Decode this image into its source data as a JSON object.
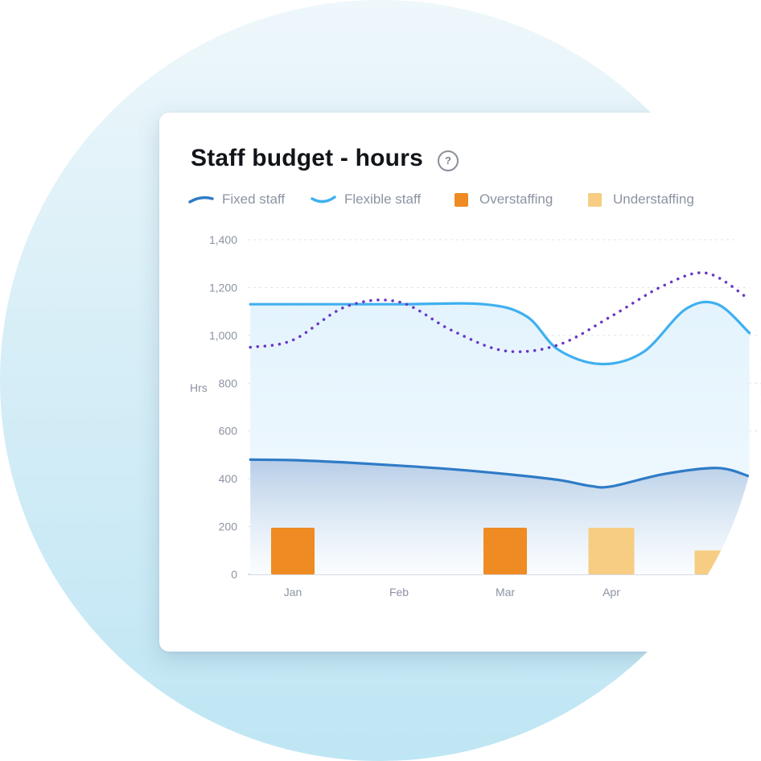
{
  "chart_data": {
    "type": "line",
    "title": "Staff budget - hours",
    "ylabel": "Hrs",
    "xlabel": "",
    "ylim": [
      0,
      1400
    ],
    "yticks": [
      0,
      200,
      400,
      600,
      800,
      1000,
      1200,
      1400
    ],
    "y_tick_labels": [
      "0",
      "200",
      "400",
      "600",
      "800",
      "1,000",
      "1,200",
      "1,400"
    ],
    "categories": [
      "Jan",
      "Feb",
      "Mar",
      "Apr"
    ],
    "grid": true,
    "legend_position": "top",
    "series": [
      {
        "name": "Fixed staff",
        "kind": "area-line",
        "color": "#2f7bc6",
        "x": [
          -0.4,
          0,
          0.5,
          1,
          1.5,
          2,
          2.5,
          2.8,
          3,
          3.5,
          4,
          4.3
        ],
        "y": [
          480,
          478,
          468,
          455,
          440,
          420,
          395,
          370,
          368,
          420,
          445,
          410
        ]
      },
      {
        "name": "Flexible staff",
        "kind": "area-line",
        "color": "#3fb0ef",
        "x": [
          -0.4,
          0,
          1,
          1.8,
          2.2,
          2.5,
          2.9,
          3.3,
          3.7,
          4,
          4.3
        ],
        "y": [
          1130,
          1130,
          1130,
          1130,
          1080,
          940,
          880,
          930,
          1110,
          1130,
          1010
        ]
      },
      {
        "name": "",
        "kind": "dotted-line",
        "color": "#6b35c4",
        "x": [
          -0.4,
          0,
          0.5,
          1,
          1.5,
          2,
          2.5,
          3,
          3.5,
          3.9,
          4.3
        ],
        "y": [
          950,
          980,
          1120,
          1140,
          1020,
          935,
          960,
          1080,
          1210,
          1260,
          1150
        ]
      },
      {
        "name": "Overstaffing",
        "kind": "bar",
        "color": "#ee8b22",
        "x": [
          0,
          2
        ],
        "y": [
          195,
          195
        ]
      },
      {
        "name": "Understaffing",
        "kind": "bar",
        "color": "#f6cd82",
        "x": [
          3,
          4
        ],
        "y": [
          195,
          100
        ]
      }
    ]
  },
  "legend": [
    {
      "label": "Fixed staff",
      "type": "line",
      "color": "#2f7bc6"
    },
    {
      "label": "Flexible staff",
      "type": "line",
      "color": "#3fb0ef"
    },
    {
      "label": "Overstaffing",
      "type": "square",
      "color": "#ee8b22"
    },
    {
      "label": "Understaffing",
      "type": "square",
      "color": "#f6cd82"
    }
  ],
  "help_icon": {
    "glyph": "?"
  }
}
